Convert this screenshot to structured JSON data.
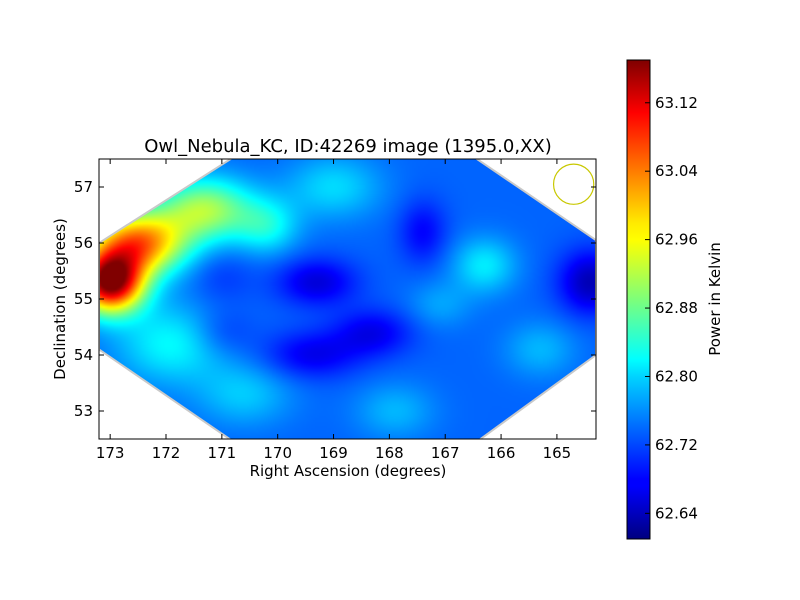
{
  "chart_data": {
    "type": "heatmap",
    "title": "Owl_Nebula_KC, ID:42269 image (1395.0,XX)",
    "xlabel": "Right Ascension (degrees)",
    "ylabel": "Declination (degrees)",
    "colorbar_label": "Power in Kelvin",
    "x_ticks": [
      173,
      172,
      171,
      170,
      169,
      168,
      167,
      166,
      165
    ],
    "y_ticks": [
      53,
      54,
      55,
      56,
      57
    ],
    "colorbar_ticks": [
      "63.12",
      "63.04",
      "62.96",
      "62.88",
      "62.80",
      "62.72",
      "62.64"
    ],
    "xlim": [
      173.2,
      164.3
    ],
    "ylim": [
      52.5,
      57.5
    ],
    "vlim": [
      62.61,
      63.17
    ],
    "colormap": "jet",
    "beam_circle": {
      "ra": 164.7,
      "dec": 57.05,
      "radius_deg": 0.36,
      "color": "#c8c800"
    },
    "hexagon_footprint": [
      [
        173.2,
        56.0
      ],
      [
        170.45,
        57.75
      ],
      [
        166.8,
        57.75
      ],
      [
        164.3,
        56.05
      ],
      [
        164.3,
        54.0
      ],
      [
        166.85,
        52.15
      ],
      [
        170.35,
        52.15
      ],
      [
        173.2,
        54.1
      ]
    ],
    "blobs": [
      {
        "ra": 173.0,
        "dec": 55.3,
        "value": 63.17,
        "sigma_ra": 0.42,
        "sigma_dec": 0.38
      },
      {
        "ra": 172.5,
        "dec": 56.0,
        "value": 63.03,
        "sigma_ra": 0.6,
        "sigma_dec": 0.4
      },
      {
        "ra": 171.3,
        "dec": 56.6,
        "value": 62.91,
        "sigma_ra": 0.6,
        "sigma_dec": 0.4
      },
      {
        "ra": 171.9,
        "dec": 54.2,
        "value": 62.82,
        "sigma_ra": 0.7,
        "sigma_dec": 0.5
      },
      {
        "ra": 170.2,
        "dec": 56.3,
        "value": 62.82,
        "sigma_ra": 0.4,
        "sigma_dec": 0.35
      },
      {
        "ra": 169.0,
        "dec": 57.0,
        "value": 62.8,
        "sigma_ra": 0.6,
        "sigma_dec": 0.4
      },
      {
        "ra": 166.3,
        "dec": 55.6,
        "value": 62.81,
        "sigma_ra": 0.4,
        "sigma_dec": 0.35
      },
      {
        "ra": 170.6,
        "dec": 53.3,
        "value": 62.79,
        "sigma_ra": 0.6,
        "sigma_dec": 0.4
      },
      {
        "ra": 167.9,
        "dec": 53.0,
        "value": 62.78,
        "sigma_ra": 0.5,
        "sigma_dec": 0.35
      },
      {
        "ra": 167.1,
        "dec": 54.9,
        "value": 62.77,
        "sigma_ra": 0.4,
        "sigma_dec": 0.3
      },
      {
        "ra": 165.3,
        "dec": 54.1,
        "value": 62.78,
        "sigma_ra": 0.45,
        "sigma_dec": 0.35
      },
      {
        "ra": 169.3,
        "dec": 55.3,
        "value": 62.66,
        "sigma_ra": 0.5,
        "sigma_dec": 0.3
      },
      {
        "ra": 169.4,
        "dec": 54.0,
        "value": 62.67,
        "sigma_ra": 0.6,
        "sigma_dec": 0.3
      },
      {
        "ra": 168.3,
        "dec": 54.4,
        "value": 62.67,
        "sigma_ra": 0.5,
        "sigma_dec": 0.3
      },
      {
        "ra": 167.4,
        "dec": 56.2,
        "value": 62.68,
        "sigma_ra": 0.3,
        "sigma_dec": 0.4
      },
      {
        "ra": 164.4,
        "dec": 55.3,
        "value": 62.64,
        "sigma_ra": 0.4,
        "sigma_dec": 0.4
      },
      {
        "ra": 171.0,
        "dec": 54.4,
        "value": 62.7,
        "sigma_ra": 0.4,
        "sigma_dec": 0.3
      },
      {
        "ra": 171.0,
        "dec": 55.4,
        "value": 62.71,
        "sigma_ra": 0.4,
        "sigma_dec": 0.35
      }
    ],
    "background_value": 62.735
  }
}
